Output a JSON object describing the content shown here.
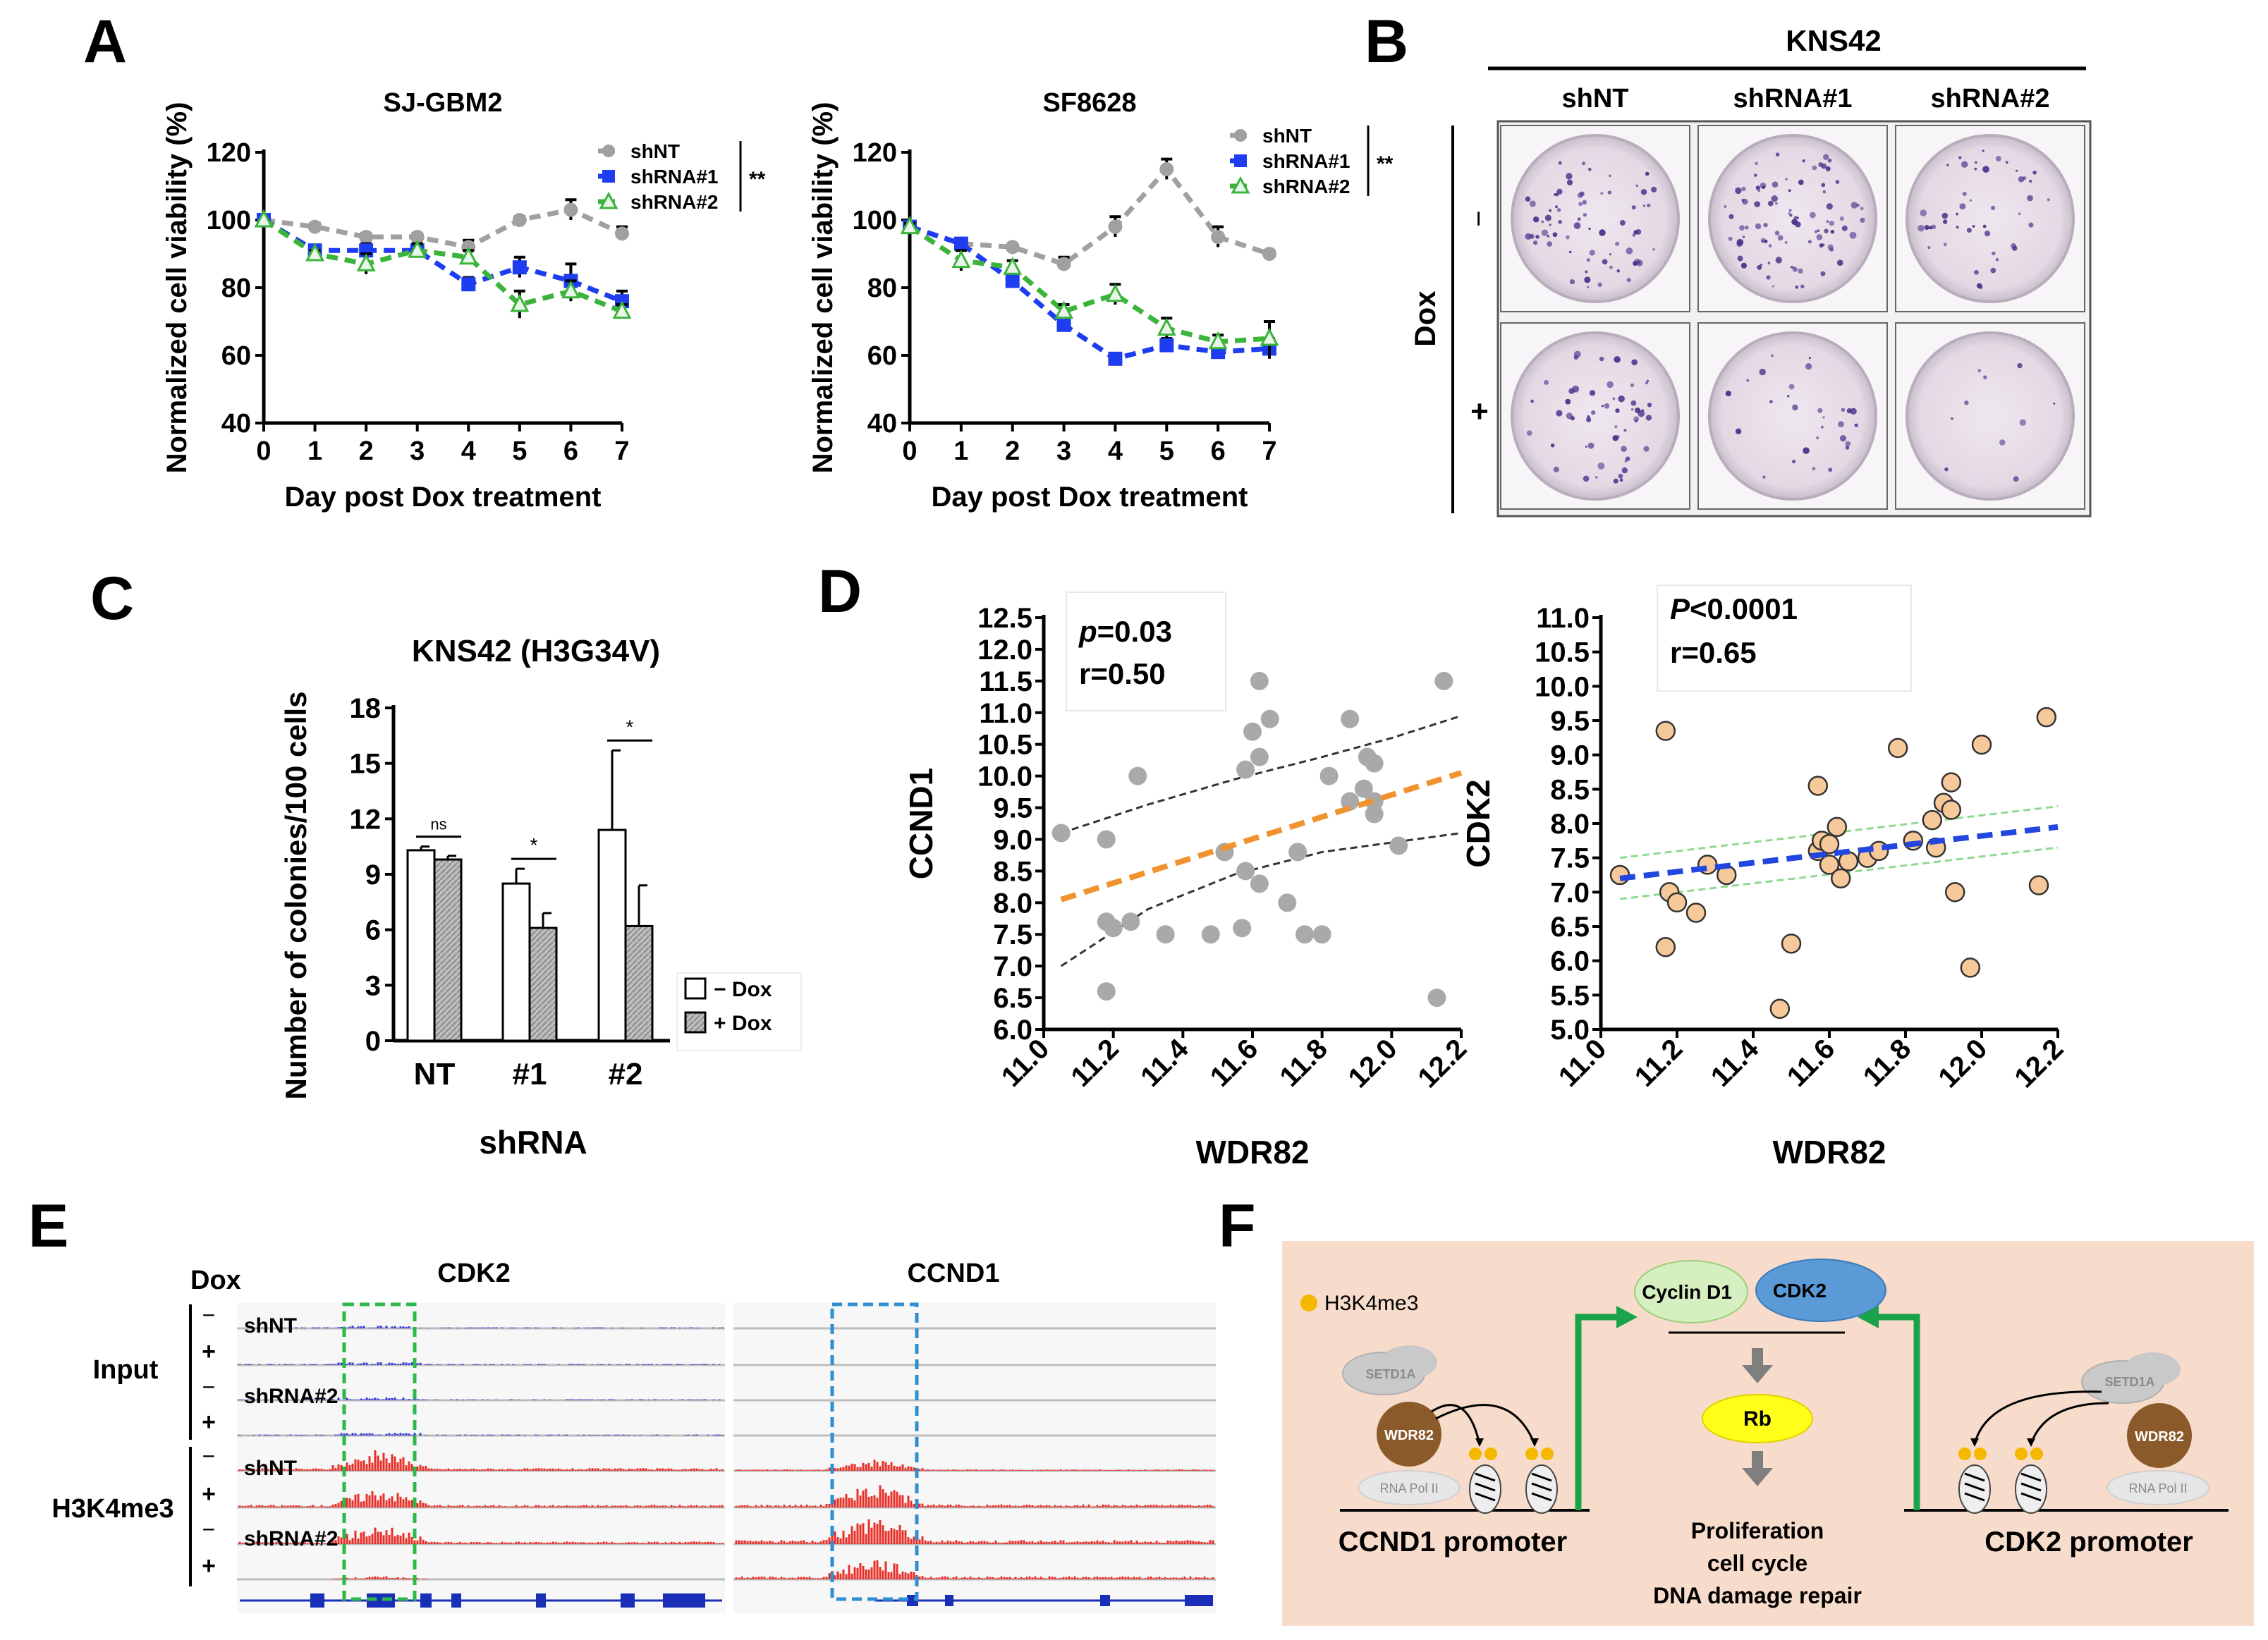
{
  "panel_letters": {
    "a": "A",
    "b": "B",
    "c": "C",
    "d": "D",
    "e": "E",
    "f": "F"
  },
  "legend_a": {
    "s1": "shNT",
    "s2": "shRNA#1",
    "s3": "shRNA#2",
    "sig": "**"
  },
  "chart_data": [
    {
      "id": "A1",
      "type": "line",
      "title": "SJ-GBM2",
      "xlabel": "Day post Dox treatment",
      "ylabel": "Normalized cell viability (%)",
      "x": [
        0,
        1,
        2,
        3,
        4,
        5,
        6,
        7
      ],
      "ylim": [
        40,
        120
      ],
      "yticks": [
        40,
        60,
        80,
        100,
        120
      ],
      "xticks": [
        0,
        1,
        2,
        3,
        4,
        5,
        6,
        7
      ],
      "series": [
        {
          "name": "shNT",
          "values": [
            100,
            98,
            95,
            95,
            92,
            100,
            103,
            96
          ],
          "err": [
            0,
            1,
            1,
            1,
            2,
            1,
            3,
            2
          ]
        },
        {
          "name": "shRNA#1",
          "values": [
            100,
            91,
            91,
            91,
            81,
            86,
            82,
            76
          ],
          "err": [
            0,
            1,
            2,
            2,
            2,
            3,
            5,
            3
          ]
        },
        {
          "name": "shRNA#2",
          "values": [
            100,
            90,
            87,
            91,
            89,
            75,
            79,
            73
          ],
          "err": [
            0,
            1,
            3,
            2,
            2,
            4,
            3,
            2
          ]
        }
      ],
      "annotation": "**"
    },
    {
      "id": "A2",
      "type": "line",
      "title": "SF8628",
      "xlabel": "Day post Dox treatment",
      "ylabel": "Normalized cell viability (%)",
      "x": [
        0,
        1,
        2,
        3,
        4,
        5,
        6,
        7
      ],
      "ylim": [
        40,
        120
      ],
      "yticks": [
        40,
        60,
        80,
        100,
        120
      ],
      "xticks": [
        0,
        1,
        2,
        3,
        4,
        5,
        6,
        7
      ],
      "series": [
        {
          "name": "shNT",
          "values": [
            98,
            93,
            92,
            87,
            98,
            115,
            95,
            90
          ],
          "err": [
            1,
            1,
            1,
            2,
            3,
            3,
            3,
            1
          ]
        },
        {
          "name": "shRNA#1",
          "values": [
            98,
            93,
            82,
            69,
            59,
            63,
            61,
            62
          ],
          "err": [
            1,
            1,
            2,
            2,
            1,
            2,
            2,
            3
          ]
        },
        {
          "name": "shRNA#2",
          "values": [
            98,
            88,
            86,
            73,
            78,
            68,
            64,
            65
          ],
          "err": [
            1,
            3,
            2,
            2,
            3,
            3,
            2,
            5
          ]
        }
      ],
      "annotation": "**"
    },
    {
      "id": "C",
      "type": "bar",
      "title": "KNS42 (H3G34V)",
      "xlabel": "shRNA",
      "ylabel": "Number of colonies/100 cells",
      "categories": [
        "NT",
        "#1",
        "#2"
      ],
      "ylim": [
        0,
        18
      ],
      "yticks": [
        0,
        3,
        6,
        9,
        12,
        15,
        18
      ],
      "series": [
        {
          "name": "− Dox",
          "values": [
            10.3,
            8.5,
            11.4
          ],
          "err": [
            0.2,
            0.8,
            4.3
          ]
        },
        {
          "name": "+ Dox",
          "values": [
            9.8,
            6.1,
            6.2
          ],
          "err": [
            0.2,
            0.8,
            2.2
          ]
        }
      ],
      "significance": [
        "ns",
        "*",
        "*"
      ]
    },
    {
      "id": "D1",
      "type": "scatter",
      "xlabel": "WDR82",
      "ylabel": "CCND1",
      "xlim": [
        11.0,
        12.2
      ],
      "ylim": [
        6.0,
        12.5
      ],
      "xticks": [
        "11.0",
        "11.2",
        "11.4",
        "11.6",
        "11.8",
        "12.0",
        "12.2"
      ],
      "yticks": [
        "6.0",
        "6.5",
        "7.0",
        "7.5",
        "8.0",
        "8.5",
        "9.0",
        "9.5",
        "10.0",
        "10.5",
        "11.0",
        "11.5",
        "12.0",
        "12.5"
      ],
      "points": [
        [
          11.05,
          9.1
        ],
        [
          11.18,
          9.0
        ],
        [
          11.18,
          7.7
        ],
        [
          11.2,
          7.6
        ],
        [
          11.18,
          6.6
        ],
        [
          11.25,
          7.7
        ],
        [
          11.27,
          10.0
        ],
        [
          11.35,
          7.5
        ],
        [
          11.48,
          7.5
        ],
        [
          11.52,
          8.8
        ],
        [
          11.57,
          7.6
        ],
        [
          11.58,
          10.1
        ],
        [
          11.58,
          8.5
        ],
        [
          11.6,
          10.7
        ],
        [
          11.62,
          10.3
        ],
        [
          11.62,
          8.3
        ],
        [
          11.62,
          11.5
        ],
        [
          11.65,
          10.9
        ],
        [
          11.7,
          8.0
        ],
        [
          11.73,
          8.8
        ],
        [
          11.75,
          7.5
        ],
        [
          11.8,
          7.5
        ],
        [
          11.82,
          10.0
        ],
        [
          11.88,
          10.9
        ],
        [
          11.88,
          9.6
        ],
        [
          11.92,
          9.8
        ],
        [
          11.93,
          10.3
        ],
        [
          11.95,
          9.6
        ],
        [
          11.95,
          10.2
        ],
        [
          11.95,
          9.4
        ],
        [
          12.02,
          8.9
        ],
        [
          12.15,
          11.5
        ],
        [
          12.13,
          6.5
        ]
      ],
      "fit": {
        "x": [
          11.05,
          12.2
        ],
        "y": [
          8.05,
          10.05
        ]
      },
      "ci_upper": {
        "x": [
          11.05,
          11.3,
          11.55,
          11.8,
          12.0,
          12.2
        ],
        "y": [
          9.1,
          9.55,
          9.95,
          10.3,
          10.6,
          10.95
        ]
      },
      "ci_lower": {
        "x": [
          11.05,
          11.3,
          11.55,
          11.8,
          12.0,
          12.2
        ],
        "y": [
          7.0,
          7.9,
          8.45,
          8.8,
          8.95,
          9.1
        ]
      },
      "stat_label": "p",
      "stat_value": "=0.03",
      "r": "r=0.50"
    },
    {
      "id": "D2",
      "type": "scatter",
      "xlabel": "WDR82",
      "ylabel": "CDK2",
      "xlim": [
        11.0,
        12.2
      ],
      "ylim": [
        5.0,
        11.0
      ],
      "xticks": [
        "11.0",
        "11.2",
        "11.4",
        "11.6",
        "11.8",
        "12.0",
        "12.2"
      ],
      "yticks": [
        "5.0",
        "5.5",
        "6.0",
        "6.5",
        "7.0",
        "7.5",
        "8.0",
        "8.5",
        "9.0",
        "9.5",
        "10.0",
        "10.5",
        "11.0"
      ],
      "points": [
        [
          11.05,
          7.25
        ],
        [
          11.17,
          9.35
        ],
        [
          11.17,
          6.2
        ],
        [
          11.18,
          7.0
        ],
        [
          11.2,
          6.85
        ],
        [
          11.25,
          6.7
        ],
        [
          11.28,
          7.4
        ],
        [
          11.33,
          7.25
        ],
        [
          11.47,
          5.3
        ],
        [
          11.5,
          6.25
        ],
        [
          11.57,
          8.55
        ],
        [
          11.57,
          7.6
        ],
        [
          11.58,
          7.75
        ],
        [
          11.6,
          7.4
        ],
        [
          11.6,
          7.7
        ],
        [
          11.62,
          7.95
        ],
        [
          11.63,
          7.2
        ],
        [
          11.65,
          7.45
        ],
        [
          11.7,
          7.5
        ],
        [
          11.73,
          7.6
        ],
        [
          11.78,
          9.1
        ],
        [
          11.82,
          7.75
        ],
        [
          11.87,
          8.05
        ],
        [
          11.88,
          7.65
        ],
        [
          11.9,
          8.3
        ],
        [
          11.92,
          8.6
        ],
        [
          11.93,
          7.0
        ],
        [
          11.92,
          8.2
        ],
        [
          11.97,
          5.9
        ],
        [
          12.0,
          9.15
        ],
        [
          12.15,
          7.1
        ],
        [
          12.17,
          9.55
        ]
      ],
      "fit": {
        "x": [
          11.05,
          12.2
        ],
        "y": [
          7.2,
          7.95
        ]
      },
      "ci_upper": {
        "x": [
          11.05,
          12.2
        ],
        "y": [
          7.5,
          8.25
        ]
      },
      "ci_lower": {
        "x": [
          11.05,
          12.2
        ],
        "y": [
          6.9,
          7.65
        ]
      },
      "stat_label": "P",
      "stat_value": "<0.0001",
      "r": "r=0.65"
    }
  ],
  "panel_b": {
    "title": "KNS42",
    "columns": [
      "shNT",
      "shRNA#1",
      "shRNA#2"
    ],
    "row_title": "Dox",
    "rows": [
      "−",
      "+"
    ]
  },
  "panel_e": {
    "dox": "Dox",
    "track1": "CDK2",
    "track2": "CCND1",
    "group1": "Input",
    "group2": "H3K4me3",
    "signs": [
      "−",
      "+",
      "−",
      "+",
      "−",
      "+",
      "−",
      "+"
    ],
    "labels": [
      "shNT",
      "shRNA#2",
      "shNT",
      "shRNA#2"
    ]
  },
  "panel_f": {
    "legend": "H3K4me3",
    "cyclin": "Cyclin D1",
    "cdk2": "CDK2",
    "rb": "Rb",
    "setd1a": "SETD1A",
    "wdr82": "WDR82",
    "polii": "RNA Pol II",
    "ccnd1_promoter": "CCND1 promoter",
    "cdk2_promoter": "CDK2 promoter",
    "outcome1": "Proliferation",
    "outcome2": "cell cycle",
    "outcome3": "DNA damage repair"
  }
}
